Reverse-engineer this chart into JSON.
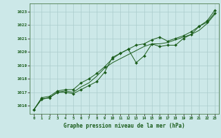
{
  "title": "Graphe pression niveau de la mer (hPa)",
  "background_color": "#cce8e8",
  "grid_color": "#aacccc",
  "line_color": "#1a5c1a",
  "marker_color": "#1a5c1a",
  "xlim": [
    -0.5,
    23.5
  ],
  "ylim": [
    1015.4,
    1023.6
  ],
  "yticks": [
    1016,
    1017,
    1018,
    1019,
    1020,
    1021,
    1022,
    1023
  ],
  "xticks": [
    0,
    1,
    2,
    3,
    4,
    5,
    6,
    7,
    8,
    9,
    10,
    11,
    12,
    13,
    14,
    15,
    16,
    17,
    18,
    19,
    20,
    21,
    22,
    23
  ],
  "line1_x": [
    0,
    1,
    2,
    3,
    4,
    5,
    6,
    7,
    8,
    9,
    10,
    11,
    12,
    13,
    14,
    15,
    16,
    17,
    18,
    19,
    20,
    21,
    22,
    23
  ],
  "line1_y": [
    1015.7,
    1016.5,
    1016.6,
    1017.0,
    1017.0,
    1016.9,
    1017.2,
    1017.5,
    1017.8,
    1018.5,
    1019.6,
    1019.9,
    1020.2,
    1019.2,
    1019.7,
    1020.6,
    1020.4,
    1020.5,
    1020.5,
    1021.0,
    1021.3,
    1021.9,
    1022.2,
    1022.9
  ],
  "line2_x": [
    0,
    1,
    2,
    3,
    4,
    5,
    6,
    7,
    8,
    9,
    10,
    11,
    12,
    13,
    14,
    15,
    16,
    17,
    18,
    19,
    20,
    21,
    22,
    23
  ],
  "line2_y": [
    1015.7,
    1016.5,
    1016.6,
    1017.0,
    1017.1,
    1017.0,
    1017.4,
    1017.7,
    1018.2,
    1018.8,
    1019.2,
    1019.5,
    1019.8,
    1020.1,
    1020.4,
    1020.6,
    1020.6,
    1020.7,
    1020.9,
    1021.1,
    1021.3,
    1021.6,
    1022.1,
    1022.8
  ],
  "line3_x": [
    0,
    1,
    2,
    3,
    4,
    5,
    6,
    7,
    8,
    9,
    10,
    11,
    12,
    13,
    14,
    15,
    16,
    17,
    18,
    19,
    20,
    21,
    22,
    23
  ],
  "line3_y": [
    1015.7,
    1016.6,
    1016.7,
    1017.1,
    1017.2,
    1017.2,
    1017.7,
    1018.0,
    1018.4,
    1018.9,
    1019.5,
    1019.9,
    1020.2,
    1020.5,
    1020.6,
    1020.9,
    1021.1,
    1020.8,
    1021.0,
    1021.2,
    1021.5,
    1021.9,
    1022.3,
    1023.1
  ]
}
